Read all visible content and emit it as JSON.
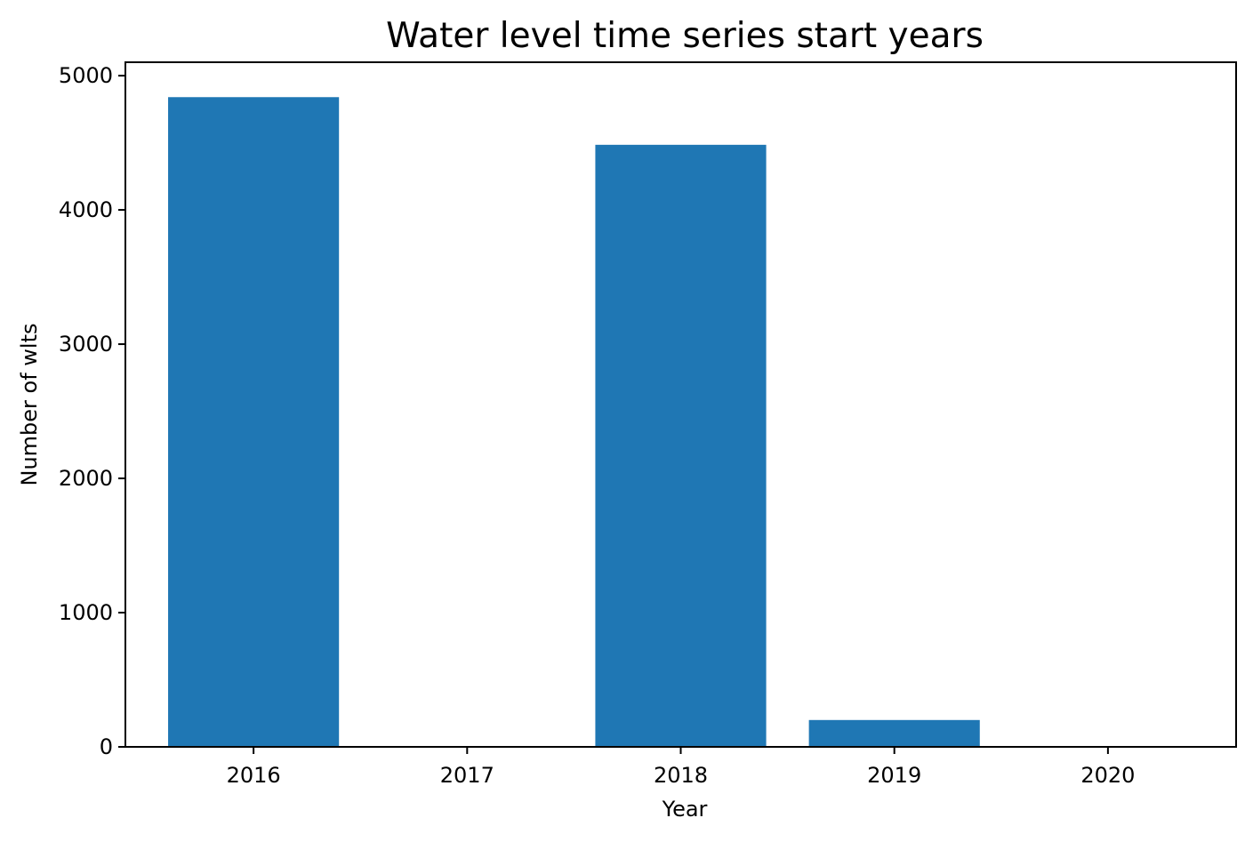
{
  "chart_data": {
    "type": "bar",
    "title": "Water level time series start years",
    "xlabel": "Year",
    "ylabel": "Number of wlts",
    "categories": [
      "2016",
      "2017",
      "2018",
      "2019",
      "2020"
    ],
    "values": [
      4840,
      0,
      4485,
      200,
      0
    ],
    "ylim": [
      0,
      5100
    ],
    "yticks": [
      0,
      1000,
      2000,
      3000,
      4000,
      5000
    ],
    "grid": false,
    "bar_color": "#1f77b4"
  }
}
